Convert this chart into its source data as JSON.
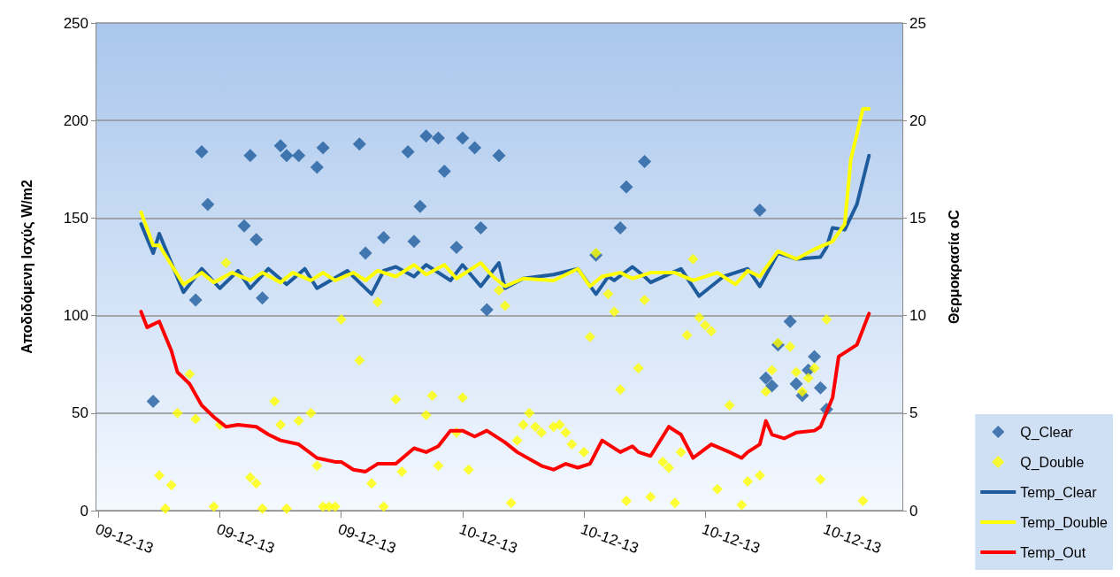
{
  "chart_data": {
    "type": "scatter",
    "ylabel": "Αποδιδόμενη Ισχύς W/m2",
    "y2label": "Θερμοκρασία oC",
    "categories": [
      "09-12-13",
      null,
      null,
      null,
      null,
      null,
      null,
      null,
      null,
      null,
      null,
      null,
      null,
      null,
      null,
      null,
      null,
      null,
      null,
      null,
      "09-12-13",
      null,
      null,
      null,
      null,
      null,
      null,
      null,
      null,
      null,
      null,
      null,
      null,
      null,
      null,
      null,
      null,
      null,
      null,
      null,
      "09-12-13",
      null,
      null,
      null,
      null,
      null,
      null,
      null,
      null,
      null,
      null,
      null,
      null,
      null,
      null,
      null,
      null,
      null,
      null,
      null,
      "10-12-13",
      null,
      null,
      null,
      null,
      null,
      null,
      null,
      null,
      null,
      null,
      null,
      null,
      null,
      null,
      null,
      null,
      null,
      null,
      null,
      "10-12-13",
      null,
      null,
      null,
      null,
      null,
      null,
      null,
      null,
      null,
      null,
      null,
      null,
      null,
      null,
      null,
      null,
      null,
      null,
      null,
      "10-12-13",
      null,
      null,
      null,
      null,
      null,
      null,
      null,
      null,
      null,
      null,
      null,
      null,
      null,
      null,
      null,
      null,
      null,
      null,
      null,
      "10-12-13",
      null,
      null,
      null,
      null,
      null,
      null,
      null,
      null,
      null,
      null,
      null,
      null
    ],
    "ylim": [
      0,
      250
    ],
    "yticks": [
      0,
      50,
      100,
      150,
      200,
      250
    ],
    "y2lim": [
      0,
      25
    ],
    "y2ticks": [
      0,
      5,
      10,
      15,
      20,
      25
    ],
    "grid": "y",
    "legend": "right",
    "line_style": "solid",
    "series": [
      {
        "name": "Q_Clear",
        "marker": "diamond",
        "color": "#1f5c9e",
        "values": [
          null,
          null,
          null,
          null,
          null,
          null,
          null,
          null,
          null,
          56,
          null,
          null,
          null,
          null,
          null,
          null,
          108,
          184,
          157,
          null,
          null,
          null,
          null,
          null,
          146,
          182,
          139,
          109,
          null,
          null,
          187,
          182,
          null,
          182,
          null,
          null,
          176,
          186,
          null,
          null,
          null,
          null,
          null,
          188,
          132,
          null,
          null,
          140,
          null,
          null,
          null,
          184,
          138,
          156,
          192,
          null,
          191,
          174,
          null,
          135,
          191,
          null,
          186,
          145,
          103,
          null,
          182,
          null,
          null,
          null,
          null,
          null,
          null,
          null,
          null,
          null,
          null,
          null,
          null,
          null,
          null,
          null,
          131,
          null,
          null,
          null,
          145,
          166,
          null,
          null,
          179,
          null,
          null,
          null,
          null,
          null,
          null,
          null,
          null,
          null,
          null,
          null,
          null,
          null,
          null,
          null,
          null,
          null,
          null,
          154,
          68,
          64,
          85,
          null,
          97,
          65,
          59,
          72,
          79,
          63,
          52,
          null,
          null,
          null,
          null,
          null,
          null,
          null,
          null,
          null,
          null,
          null,
          null
        ]
      },
      {
        "name": "Q_Double",
        "marker": "diamond",
        "color": "#ffff00",
        "values": [
          null,
          null,
          null,
          null,
          null,
          null,
          null,
          null,
          null,
          null,
          18,
          1,
          13,
          50,
          null,
          70,
          47,
          null,
          null,
          2,
          44,
          127,
          null,
          null,
          null,
          17,
          14,
          1,
          null,
          56,
          44,
          1,
          null,
          46,
          null,
          50,
          23,
          2,
          2,
          2,
          98,
          null,
          null,
          77,
          null,
          14,
          107,
          2,
          null,
          57,
          20,
          null,
          null,
          null,
          49,
          59,
          23,
          null,
          null,
          40,
          58,
          21,
          null,
          null,
          null,
          null,
          113,
          105,
          4,
          36,
          44,
          50,
          43,
          40,
          null,
          43,
          44,
          40,
          34,
          null,
          30,
          89,
          132,
          null,
          111,
          102,
          62,
          5,
          null,
          73,
          108,
          7,
          null,
          25,
          22,
          4,
          30,
          90,
          129,
          99,
          95,
          92,
          11,
          null,
          54,
          null,
          3,
          15,
          null,
          18,
          61,
          72,
          86,
          null,
          84,
          71,
          61,
          68,
          73,
          16,
          98,
          null,
          null,
          null,
          null,
          null,
          5,
          null,
          null,
          null,
          null,
          null,
          null
        ]
      },
      {
        "name": "Temp_Clear",
        "type": "line",
        "axis": "y2",
        "color": "#1f5c9e",
        "values": [
          null,
          null,
          null,
          null,
          null,
          null,
          null,
          14.7,
          null,
          13.2,
          14.2,
          null,
          null,
          null,
          11.2,
          null,
          null,
          12.4,
          null,
          null,
          11.4,
          null,
          null,
          12.3,
          null,
          11.4,
          null,
          null,
          12.4,
          null,
          null,
          11.6,
          null,
          null,
          12.4,
          null,
          11.4,
          null,
          null,
          null,
          null,
          12.3,
          null,
          null,
          null,
          11.1,
          null,
          12.3,
          null,
          12.5,
          null,
          null,
          12.0,
          null,
          12.6,
          null,
          null,
          null,
          11.8,
          null,
          12.6,
          null,
          null,
          11.5,
          null,
          null,
          12.7,
          11.4,
          null,
          null,
          11.9,
          null,
          null,
          null,
          null,
          12.1,
          null,
          null,
          null,
          12.4,
          null,
          null,
          11.1,
          null,
          12.0,
          11.8,
          null,
          null,
          12.5,
          null,
          12.0,
          11.7,
          null,
          null,
          null,
          null,
          12.4,
          null,
          null,
          11.0,
          null,
          null,
          null,
          12.0,
          null,
          null,
          null,
          12.4,
          null,
          11.5,
          null,
          null,
          13.2,
          null,
          null,
          12.9,
          null,
          null,
          null,
          13.0,
          13.5,
          14.5,
          null,
          14.4,
          null,
          15.7,
          null,
          18.2,
          null,
          null,
          null,
          null,
          null
        ]
      },
      {
        "name": "Temp_Double",
        "type": "line",
        "axis": "y2",
        "color": "#ffff00",
        "values": [
          null,
          null,
          null,
          null,
          null,
          null,
          null,
          15.3,
          null,
          13.6,
          13.6,
          null,
          null,
          null,
          11.6,
          null,
          null,
          12.2,
          null,
          11.7,
          null,
          null,
          12.2,
          null,
          null,
          11.8,
          null,
          12.2,
          null,
          null,
          11.7,
          null,
          12.2,
          null,
          null,
          11.8,
          null,
          12.2,
          null,
          11.8,
          null,
          null,
          12.2,
          null,
          11.8,
          null,
          12.3,
          null,
          null,
          12.0,
          null,
          null,
          12.6,
          null,
          12.1,
          null,
          null,
          12.6,
          null,
          11.9,
          null,
          null,
          null,
          12.7,
          null,
          12.0,
          null,
          11.5,
          null,
          null,
          11.9,
          null,
          null,
          null,
          null,
          11.8,
          null,
          null,
          null,
          12.4,
          null,
          11.5,
          null,
          12.0,
          null,
          null,
          12.2,
          null,
          11.9,
          null,
          null,
          12.2,
          null,
          null,
          null,
          12.2,
          null,
          null,
          11.8,
          null,
          null,
          null,
          12.2,
          null,
          null,
          11.6,
          null,
          12.3,
          null,
          12.0,
          null,
          null,
          13.3,
          null,
          null,
          12.9,
          null,
          null,
          13.4,
          null,
          null,
          13.8,
          null,
          14.7,
          18.0,
          null,
          20.6,
          20.6,
          null,
          null,
          null,
          null,
          null
        ]
      },
      {
        "name": "Temp_Out",
        "type": "line",
        "axis": "y2",
        "color": "#ff0000",
        "values": [
          null,
          null,
          null,
          null,
          null,
          null,
          null,
          10.2,
          9.4,
          null,
          9.7,
          null,
          8.2,
          7.1,
          null,
          6.5,
          null,
          5.4,
          null,
          4.8,
          null,
          4.3,
          null,
          4.4,
          null,
          null,
          4.3,
          null,
          3.9,
          null,
          3.6,
          null,
          null,
          3.4,
          null,
          null,
          2.7,
          null,
          null,
          2.5,
          2.5,
          null,
          2.1,
          null,
          2.0,
          null,
          2.4,
          null,
          null,
          2.4,
          null,
          null,
          3.2,
          null,
          3.0,
          null,
          3.3,
          null,
          4.1,
          null,
          4.1,
          null,
          3.8,
          null,
          4.1,
          null,
          null,
          3.5,
          null,
          3.0,
          null,
          null,
          null,
          2.3,
          null,
          2.1,
          null,
          2.4,
          null,
          2.2,
          null,
          2.4,
          null,
          3.6,
          null,
          null,
          3.0,
          null,
          3.3,
          3.0,
          null,
          2.8,
          null,
          null,
          4.3,
          null,
          3.9,
          null,
          2.7,
          null,
          null,
          3.4,
          null,
          null,
          3.0,
          null,
          2.7,
          3.0,
          null,
          3.4,
          4.6,
          3.9,
          null,
          3.7,
          null,
          4.0,
          null,
          null,
          4.1,
          4.3,
          null,
          5.8,
          7.9,
          null,
          null,
          8.5,
          null,
          10.1,
          null,
          null,
          null,
          null,
          null
        ]
      }
    ]
  }
}
